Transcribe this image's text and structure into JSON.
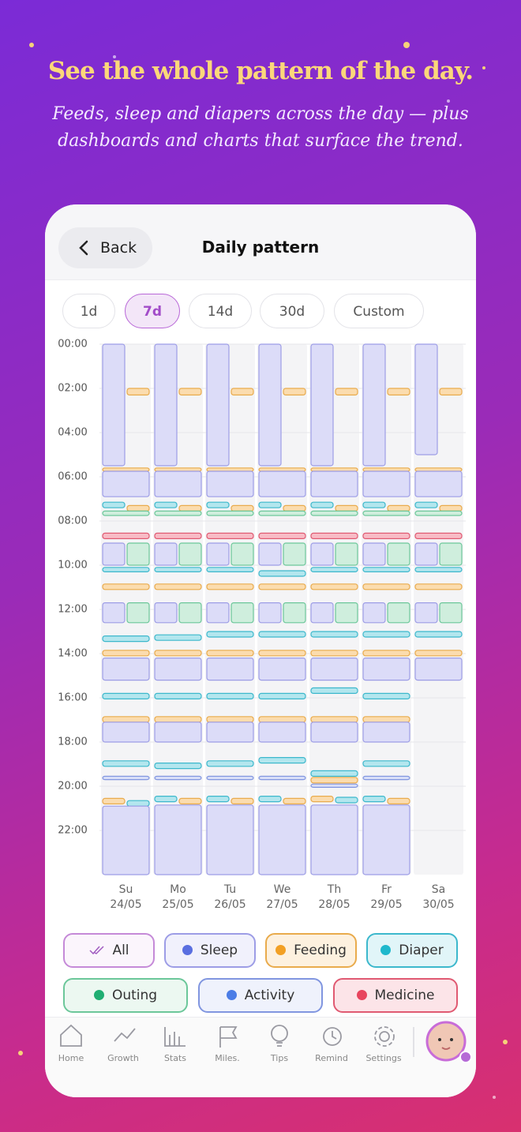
{
  "header": {
    "title": "See the whole pattern of the day.",
    "subtitle": "Feeds, sleep and diapers across the day — plus dashboards and charts that surface the trend."
  },
  "screen": {
    "back": "Back",
    "title": "Daily pattern",
    "ranges": [
      "1d",
      "7d",
      "14d",
      "30d",
      "Custom"
    ],
    "active_range": "7d"
  },
  "chart_data": {
    "type": "timeline",
    "ylim": [
      0,
      24
    ],
    "yticks": [
      {
        "value": 0,
        "label": "00:00"
      },
      {
        "value": 2,
        "label": "02:00"
      },
      {
        "value": 4,
        "label": "04:00"
      },
      {
        "value": 6,
        "label": "06:00"
      },
      {
        "value": 8,
        "label": "08:00"
      },
      {
        "value": 10,
        "label": "10:00"
      },
      {
        "value": 12,
        "label": "12:00"
      },
      {
        "value": 14,
        "label": "14:00"
      },
      {
        "value": 16,
        "label": "16:00"
      },
      {
        "value": 18,
        "label": "18:00"
      },
      {
        "value": 20,
        "label": "20:00"
      },
      {
        "value": 22,
        "label": "22:00"
      }
    ],
    "colors": {
      "sleep": {
        "fill": "#dcdcf8",
        "stroke": "#9d9de6",
        "dot": "#5a6fe0"
      },
      "feeding": {
        "fill": "#fbdcae",
        "stroke": "#e9ab4c",
        "dot": "#f2a024"
      },
      "diaper": {
        "fill": "#b3e6ee",
        "stroke": "#3cb8cc",
        "dot": "#1fb8cc"
      },
      "outing": {
        "fill": "#cfeedd",
        "stroke": "#6cc79a",
        "dot": "#1fae72"
      },
      "medicine": {
        "fill": "#f8bcc6",
        "stroke": "#e05a72",
        "dot": "#e8455e"
      },
      "activity": {
        "fill": "#d8def8",
        "stroke": "#8196e0",
        "dot": "#4c7de6"
      },
      "all": {
        "fill": "#f4e6f8",
        "stroke": "#c58ad8",
        "dot": "#a05bc0"
      }
    },
    "legend": [
      {
        "key": "all",
        "label": "All"
      },
      {
        "key": "sleep",
        "label": "Sleep"
      },
      {
        "key": "feeding",
        "label": "Feeding"
      },
      {
        "key": "diaper",
        "label": "Diaper"
      },
      {
        "key": "outing",
        "label": "Outing"
      },
      {
        "key": "activity",
        "label": "Activity"
      },
      {
        "key": "medicine",
        "label": "Medicine"
      }
    ],
    "days": [
      {
        "dow": "Su",
        "date": "24/05",
        "events": [
          [
            "sleep",
            0,
            5.5
          ],
          [
            "feeding",
            2,
            2.3
          ],
          [
            "feeding",
            5.6,
            5.75
          ],
          [
            "sleep",
            5.75,
            6.9
          ],
          [
            "diaper",
            7.15,
            7.4
          ],
          [
            "feeding",
            7.3,
            7.55
          ],
          [
            "outing",
            7.55,
            7.75
          ],
          [
            "medicine",
            8.55,
            8.8
          ],
          [
            "sleep",
            9,
            10
          ],
          [
            "outing",
            9,
            10
          ],
          [
            "diaper",
            10.1,
            10.3
          ],
          [
            "feeding",
            10.85,
            11.1
          ],
          [
            "sleep",
            11.7,
            12.6
          ],
          [
            "outing",
            11.7,
            12.6
          ],
          [
            "diaper",
            13.2,
            13.45
          ],
          [
            "feeding",
            13.85,
            14.1
          ],
          [
            "sleep",
            14.2,
            15.2
          ],
          [
            "diaper",
            15.8,
            16.05
          ],
          [
            "feeding",
            16.85,
            17.1
          ],
          [
            "sleep",
            17.1,
            18
          ],
          [
            "diaper",
            18.85,
            19.1
          ],
          [
            "activity",
            19.55,
            19.7
          ],
          [
            "feeding",
            20.55,
            20.8
          ],
          [
            "diaper",
            20.65,
            20.9
          ],
          [
            "sleep",
            20.9,
            24
          ]
        ]
      },
      {
        "dow": "Mo",
        "date": "25/05",
        "events": [
          [
            "sleep",
            0,
            5.5
          ],
          [
            "feeding",
            2,
            2.3
          ],
          [
            "feeding",
            5.6,
            5.75
          ],
          [
            "sleep",
            5.75,
            6.9
          ],
          [
            "diaper",
            7.15,
            7.4
          ],
          [
            "feeding",
            7.3,
            7.55
          ],
          [
            "outing",
            7.55,
            7.75
          ],
          [
            "medicine",
            8.55,
            8.8
          ],
          [
            "sleep",
            9,
            10
          ],
          [
            "outing",
            9,
            10
          ],
          [
            "diaper",
            10.1,
            10.3
          ],
          [
            "feeding",
            10.85,
            11.1
          ],
          [
            "sleep",
            11.7,
            12.6
          ],
          [
            "outing",
            11.7,
            12.6
          ],
          [
            "diaper",
            13.15,
            13.4
          ],
          [
            "feeding",
            13.85,
            14.1
          ],
          [
            "sleep",
            14.2,
            15.2
          ],
          [
            "diaper",
            15.8,
            16.05
          ],
          [
            "feeding",
            16.85,
            17.1
          ],
          [
            "sleep",
            17.1,
            18
          ],
          [
            "diaper",
            18.95,
            19.2
          ],
          [
            "activity",
            19.55,
            19.7
          ],
          [
            "diaper",
            20.45,
            20.7
          ],
          [
            "feeding",
            20.55,
            20.8
          ],
          [
            "sleep",
            20.85,
            24
          ]
        ]
      },
      {
        "dow": "Tu",
        "date": "26/05",
        "events": [
          [
            "sleep",
            0,
            5.5
          ],
          [
            "feeding",
            2,
            2.3
          ],
          [
            "feeding",
            5.6,
            5.75
          ],
          [
            "sleep",
            5.75,
            6.9
          ],
          [
            "diaper",
            7.15,
            7.4
          ],
          [
            "feeding",
            7.3,
            7.55
          ],
          [
            "outing",
            7.55,
            7.75
          ],
          [
            "medicine",
            8.55,
            8.8
          ],
          [
            "sleep",
            9,
            10
          ],
          [
            "outing",
            9,
            10
          ],
          [
            "diaper",
            10.1,
            10.3
          ],
          [
            "feeding",
            10.85,
            11.1
          ],
          [
            "sleep",
            11.7,
            12.6
          ],
          [
            "outing",
            11.7,
            12.6
          ],
          [
            "diaper",
            13,
            13.25
          ],
          [
            "feeding",
            13.85,
            14.1
          ],
          [
            "sleep",
            14.2,
            15.2
          ],
          [
            "diaper",
            15.8,
            16.05
          ],
          [
            "feeding",
            16.85,
            17.1
          ],
          [
            "sleep",
            17.1,
            18
          ],
          [
            "diaper",
            18.85,
            19.1
          ],
          [
            "activity",
            19.55,
            19.7
          ],
          [
            "diaper",
            20.45,
            20.7
          ],
          [
            "feeding",
            20.55,
            20.8
          ],
          [
            "sleep",
            20.85,
            24
          ]
        ]
      },
      {
        "dow": "We",
        "date": "27/05",
        "events": [
          [
            "sleep",
            0,
            5.5
          ],
          [
            "feeding",
            2,
            2.3
          ],
          [
            "feeding",
            5.6,
            5.75
          ],
          [
            "sleep",
            5.75,
            6.9
          ],
          [
            "diaper",
            7.15,
            7.4
          ],
          [
            "feeding",
            7.3,
            7.55
          ],
          [
            "outing",
            7.55,
            7.75
          ],
          [
            "medicine",
            8.55,
            8.8
          ],
          [
            "sleep",
            9,
            10
          ],
          [
            "outing",
            9,
            10
          ],
          [
            "diaper",
            10.25,
            10.5
          ],
          [
            "feeding",
            10.85,
            11.1
          ],
          [
            "sleep",
            11.7,
            12.6
          ],
          [
            "outing",
            11.7,
            12.6
          ],
          [
            "diaper",
            13,
            13.25
          ],
          [
            "feeding",
            13.85,
            14.1
          ],
          [
            "sleep",
            14.2,
            15.2
          ],
          [
            "diaper",
            15.8,
            16.05
          ],
          [
            "feeding",
            16.85,
            17.1
          ],
          [
            "sleep",
            17.1,
            18
          ],
          [
            "diaper",
            18.7,
            18.95
          ],
          [
            "activity",
            19.55,
            19.7
          ],
          [
            "diaper",
            20.45,
            20.7
          ],
          [
            "feeding",
            20.55,
            20.8
          ],
          [
            "sleep",
            20.85,
            24
          ]
        ]
      },
      {
        "dow": "Th",
        "date": "28/05",
        "events": [
          [
            "sleep",
            0,
            5.5
          ],
          [
            "feeding",
            2,
            2.3
          ],
          [
            "feeding",
            5.6,
            5.75
          ],
          [
            "sleep",
            5.75,
            6.9
          ],
          [
            "diaper",
            7.15,
            7.4
          ],
          [
            "feeding",
            7.3,
            7.55
          ],
          [
            "outing",
            7.55,
            7.75
          ],
          [
            "medicine",
            8.55,
            8.8
          ],
          [
            "sleep",
            9,
            10
          ],
          [
            "outing",
            9,
            10
          ],
          [
            "diaper",
            10.1,
            10.3
          ],
          [
            "feeding",
            10.85,
            11.1
          ],
          [
            "sleep",
            11.7,
            12.6
          ],
          [
            "outing",
            11.7,
            12.6
          ],
          [
            "diaper",
            13,
            13.25
          ],
          [
            "feeding",
            13.85,
            14.1
          ],
          [
            "sleep",
            14.2,
            15.2
          ],
          [
            "diaper",
            15.55,
            15.8
          ],
          [
            "feeding",
            16.85,
            17.1
          ],
          [
            "sleep",
            17.1,
            18
          ],
          [
            "diaper",
            19.3,
            19.55
          ],
          [
            "feeding",
            19.6,
            19.85
          ],
          [
            "activity",
            19.9,
            20.05
          ],
          [
            "feeding",
            20.45,
            20.7
          ],
          [
            "diaper",
            20.5,
            20.75
          ],
          [
            "sleep",
            20.85,
            24
          ]
        ]
      },
      {
        "dow": "Fr",
        "date": "29/05",
        "events": [
          [
            "sleep",
            0,
            5.5
          ],
          [
            "feeding",
            2,
            2.3
          ],
          [
            "feeding",
            5.6,
            5.75
          ],
          [
            "sleep",
            5.75,
            6.9
          ],
          [
            "diaper",
            7.15,
            7.4
          ],
          [
            "feeding",
            7.3,
            7.55
          ],
          [
            "outing",
            7.55,
            7.75
          ],
          [
            "medicine",
            8.55,
            8.8
          ],
          [
            "sleep",
            9,
            10
          ],
          [
            "outing",
            9,
            10
          ],
          [
            "diaper",
            10.1,
            10.3
          ],
          [
            "feeding",
            10.85,
            11.1
          ],
          [
            "sleep",
            11.7,
            12.6
          ],
          [
            "outing",
            11.7,
            12.6
          ],
          [
            "diaper",
            13,
            13.25
          ],
          [
            "feeding",
            13.85,
            14.1
          ],
          [
            "sleep",
            14.2,
            15.2
          ],
          [
            "diaper",
            15.8,
            16.05
          ],
          [
            "feeding",
            16.85,
            17.1
          ],
          [
            "sleep",
            17.1,
            18
          ],
          [
            "diaper",
            18.85,
            19.1
          ],
          [
            "activity",
            19.55,
            19.7
          ],
          [
            "diaper",
            20.45,
            20.7
          ],
          [
            "feeding",
            20.55,
            20.8
          ],
          [
            "sleep",
            20.85,
            24
          ]
        ]
      },
      {
        "dow": "Sa",
        "date": "30/05",
        "events": [
          [
            "sleep",
            0,
            5
          ],
          [
            "feeding",
            2,
            2.3
          ],
          [
            "feeding",
            5.6,
            5.75
          ],
          [
            "sleep",
            5.75,
            6.9
          ],
          [
            "diaper",
            7.15,
            7.4
          ],
          [
            "feeding",
            7.3,
            7.55
          ],
          [
            "outing",
            7.55,
            7.75
          ],
          [
            "medicine",
            8.55,
            8.8
          ],
          [
            "sleep",
            9,
            10
          ],
          [
            "outing",
            9,
            10
          ],
          [
            "diaper",
            10.1,
            10.3
          ],
          [
            "feeding",
            10.85,
            11.1
          ],
          [
            "sleep",
            11.7,
            12.6
          ],
          [
            "outing",
            11.7,
            12.6
          ],
          [
            "diaper",
            13,
            13.25
          ],
          [
            "feeding",
            13.85,
            14.1
          ],
          [
            "sleep",
            14.2,
            15.2
          ]
        ]
      }
    ]
  },
  "nav": [
    "Home",
    "Growth",
    "Stats",
    "Miles.",
    "Tips",
    "Remind",
    "Settings"
  ]
}
